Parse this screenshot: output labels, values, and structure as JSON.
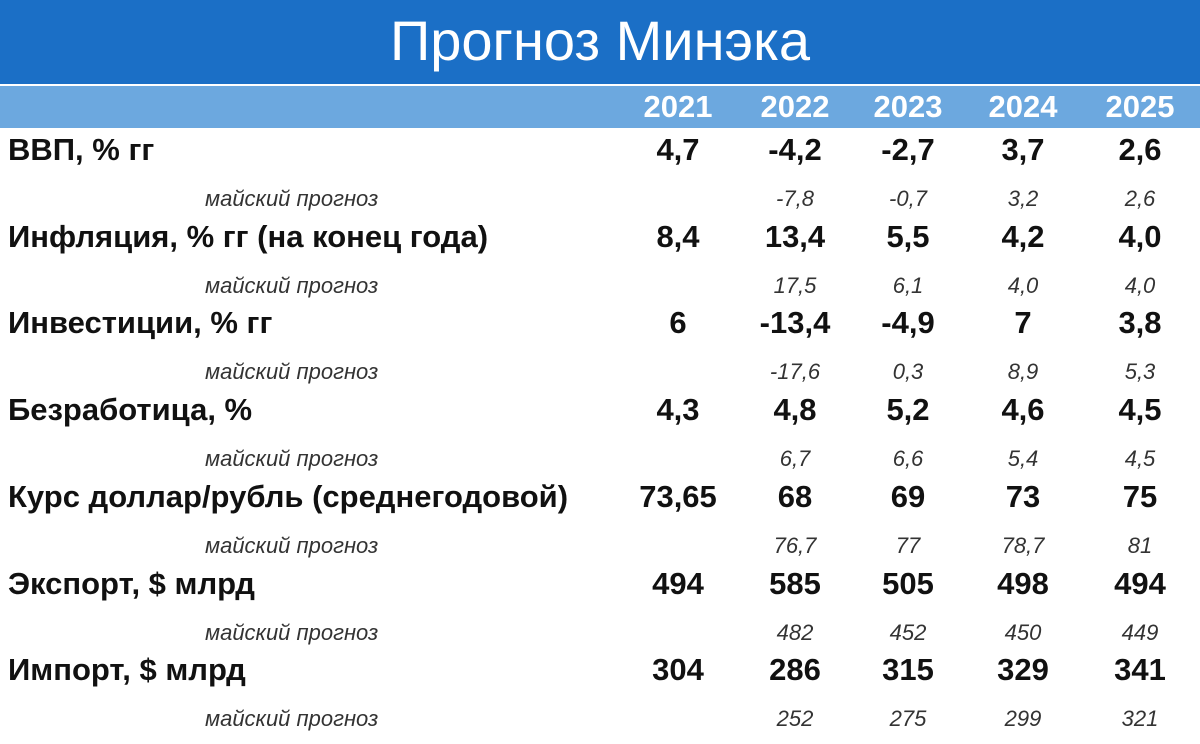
{
  "header": {
    "title": "Прогноз Минэка",
    "years": [
      "2021",
      "2022",
      "2023",
      "2024",
      "2025"
    ]
  },
  "rows": [
    {
      "label": "ВВП, % гг",
      "values": [
        "4,7",
        "-4,2",
        "-2,7",
        "3,7",
        "2,6"
      ],
      "forecast_label": "майский прогноз",
      "forecast": [
        "-7,8",
        "-0,7",
        "3,2",
        "2,6"
      ]
    },
    {
      "label": "Инфляция, % гг (на конец года)",
      "values": [
        "8,4",
        "13,4",
        "5,5",
        "4,2",
        "4,0"
      ],
      "forecast_label": "майский прогноз",
      "forecast": [
        "17,5",
        "6,1",
        "4,0",
        "4,0"
      ]
    },
    {
      "label": "Инвестиции, % гг",
      "values": [
        "6",
        "-13,4",
        "-4,9",
        "7",
        "3,8"
      ],
      "forecast_label": "майский прогноз",
      "forecast": [
        "-17,6",
        "0,3",
        "8,9",
        "5,3"
      ]
    },
    {
      "label": "Безработица, %",
      "values": [
        "4,3",
        "4,8",
        "5,2",
        "4,6",
        "4,5"
      ],
      "forecast_label": "майский прогноз",
      "forecast": [
        "6,7",
        "6,6",
        "5,4",
        "4,5"
      ]
    },
    {
      "label": "Курс доллар/рубль (среднегодовой)",
      "values": [
        "73,65",
        "68",
        "69",
        "73",
        "75"
      ],
      "forecast_label": "майский прогноз",
      "forecast": [
        "76,7",
        "77",
        "78,7",
        "81"
      ]
    },
    {
      "label": "Экспорт, $ млрд",
      "values": [
        "494",
        "585",
        "505",
        "498",
        "494"
      ],
      "forecast_label": "майский прогноз",
      "forecast": [
        "482",
        "452",
        "450",
        "449"
      ]
    },
    {
      "label": "Импорт, $ млрд",
      "values": [
        "304",
        "286",
        "315",
        "329",
        "341"
      ],
      "forecast_label": "майский прогноз",
      "forecast": [
        "252",
        "275",
        "299",
        "321"
      ]
    }
  ]
}
